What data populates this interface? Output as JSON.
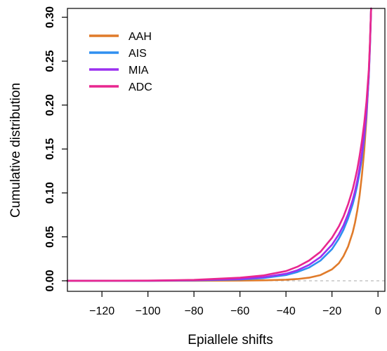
{
  "chart_data": {
    "type": "line",
    "title": "",
    "xlabel": "Epiallele shifts",
    "ylabel": "Cumulative distribution",
    "xlim": [
      -135,
      3
    ],
    "ylim": [
      -0.012,
      0.31
    ],
    "xticks": [
      -120,
      -100,
      -80,
      -60,
      -40,
      -20,
      0
    ],
    "xtick_labels": [
      "−120",
      "−100",
      "−80",
      "−60",
      "−40",
      "−20",
      "0"
    ],
    "yticks": [
      0.0,
      0.05,
      0.1,
      0.15,
      0.2,
      0.25,
      0.3
    ],
    "ytick_labels": [
      "0.00",
      "0.05",
      "0.10",
      "0.15",
      "0.20",
      "0.25",
      "0.30"
    ],
    "grid": false,
    "reference_line": {
      "y": 0,
      "style": "dashed",
      "color": "#aaaaaa"
    },
    "legend_position": "top-left",
    "series": [
      {
        "name": "AAH",
        "color": "#e07b2a",
        "width": 2.6,
        "x": [
          -135,
          -100,
          -80,
          -60,
          -50,
          -40,
          -35,
          -30,
          -25,
          -20,
          -17,
          -15,
          -13,
          -11,
          -10,
          -9,
          -8,
          -7,
          -6,
          -5,
          -4,
          -3.5,
          -3
        ],
        "y": [
          0,
          0,
          0,
          0.0002,
          0.0005,
          0.0012,
          0.002,
          0.0035,
          0.0065,
          0.013,
          0.02,
          0.028,
          0.039,
          0.055,
          0.066,
          0.08,
          0.097,
          0.12,
          0.148,
          0.185,
          0.235,
          0.27,
          0.31
        ]
      },
      {
        "name": "AIS",
        "color": "#2f8ff0",
        "width": 2.6,
        "x": [
          -135,
          -100,
          -80,
          -60,
          -50,
          -40,
          -35,
          -30,
          -25,
          -20,
          -17,
          -15,
          -13,
          -11,
          -10,
          -9,
          -8,
          -7,
          -6,
          -5,
          -4,
          -3.5,
          -3
        ],
        "y": [
          0,
          0,
          0.0004,
          0.0015,
          0.003,
          0.0065,
          0.01,
          0.015,
          0.023,
          0.036,
          0.048,
          0.058,
          0.071,
          0.087,
          0.097,
          0.109,
          0.123,
          0.14,
          0.162,
          0.19,
          0.232,
          0.265,
          0.31
        ]
      },
      {
        "name": "MIA",
        "color": "#9b30f0",
        "width": 2.6,
        "x": [
          -135,
          -100,
          -80,
          -60,
          -50,
          -40,
          -35,
          -30,
          -25,
          -20,
          -17,
          -15,
          -13,
          -11,
          -10,
          -9,
          -8,
          -7,
          -6,
          -5,
          -4,
          -3.5,
          -3
        ],
        "y": [
          0,
          0,
          0.0006,
          0.002,
          0.004,
          0.008,
          0.012,
          0.018,
          0.027,
          0.041,
          0.053,
          0.063,
          0.076,
          0.092,
          0.102,
          0.114,
          0.128,
          0.145,
          0.166,
          0.193,
          0.234,
          0.267,
          0.31
        ]
      },
      {
        "name": "ADC",
        "color": "#e8278f",
        "width": 2.6,
        "x": [
          -135,
          -100,
          -80,
          -60,
          -50,
          -40,
          -35,
          -30,
          -25,
          -20,
          -17,
          -15,
          -13,
          -11,
          -10,
          -9,
          -8,
          -7,
          -6,
          -5,
          -4,
          -3.5,
          -3
        ],
        "y": [
          0,
          0.0002,
          0.001,
          0.0035,
          0.006,
          0.011,
          0.016,
          0.023,
          0.033,
          0.049,
          0.062,
          0.073,
          0.087,
          0.104,
          0.115,
          0.127,
          0.142,
          0.159,
          0.179,
          0.204,
          0.24,
          0.27,
          0.31
        ]
      }
    ]
  }
}
